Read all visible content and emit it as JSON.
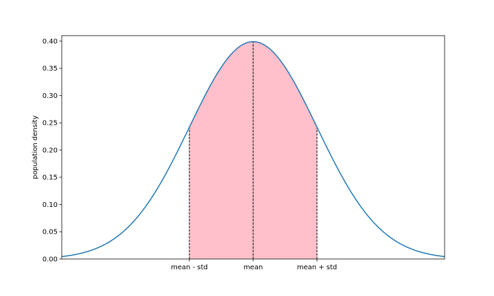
{
  "chart_data": {
    "type": "area",
    "title": "",
    "xlabel": "",
    "ylabel": "population density",
    "xlim": [
      -3,
      3
    ],
    "ylim": [
      0,
      0.41
    ],
    "grid": false,
    "legend": "none",
    "curve": {
      "distribution": "standard normal density",
      "mean": 0,
      "std": 1,
      "color": "#1f77b4"
    },
    "shaded_region": {
      "from": -1,
      "to": 1,
      "color": "#ffc0cb"
    },
    "vertical_lines": [
      {
        "x": -1,
        "style": "dashed",
        "color": "#000000"
      },
      {
        "x": 0,
        "style": "dashed",
        "color": "#000000"
      },
      {
        "x": 1,
        "style": "dashed",
        "color": "#000000"
      }
    ],
    "x_ticks": [
      {
        "value": -1,
        "label": "mean - std"
      },
      {
        "value": 0,
        "label": "mean"
      },
      {
        "value": 1,
        "label": "mean + std"
      }
    ],
    "y_ticks": [
      {
        "value": 0,
        "label": "0.00"
      },
      {
        "value": 0.05,
        "label": "0.05"
      },
      {
        "value": 0.1,
        "label": "0.10"
      },
      {
        "value": 0.15,
        "label": "0.15"
      },
      {
        "value": 0.2,
        "label": "0.20"
      },
      {
        "value": 0.25,
        "label": "0.25"
      },
      {
        "value": 0.3,
        "label": "0.30"
      },
      {
        "value": 0.35,
        "label": "0.35"
      },
      {
        "value": 0.4,
        "label": "0.40"
      }
    ]
  }
}
